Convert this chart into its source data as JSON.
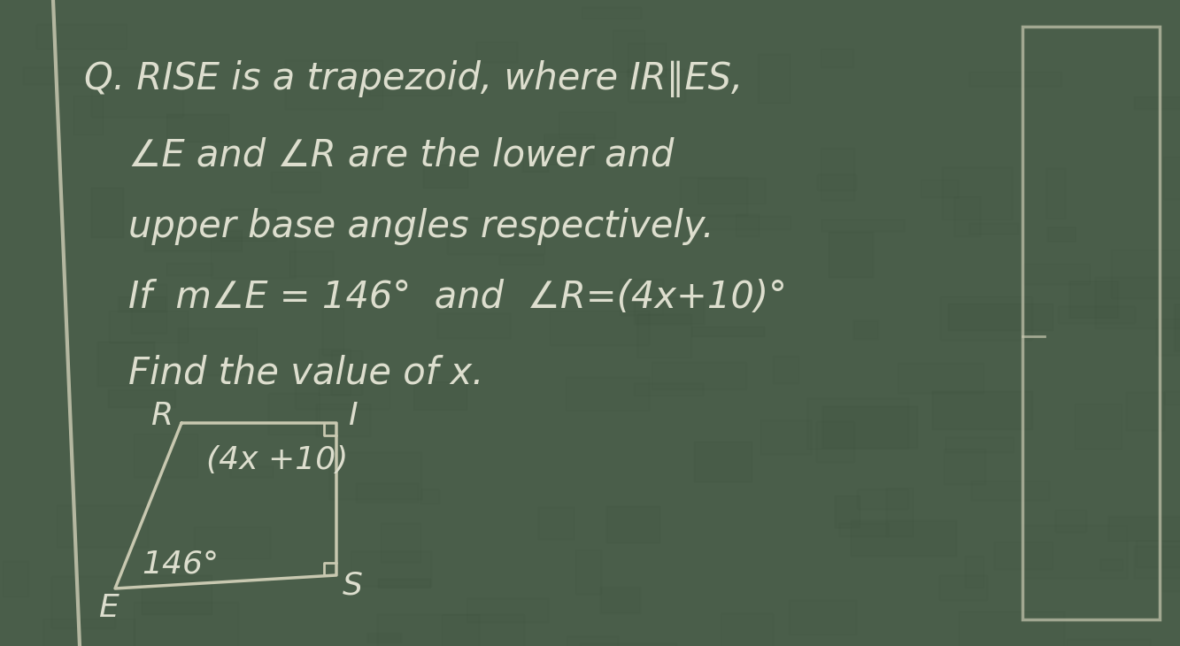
{
  "bg_color": "#4a5e4a",
  "text_color": "#dddece",
  "line1": "Q. RISE is a trapezoid, where IR∥ES,",
  "line2": "∠E and ∠R are the lower and",
  "line3": "upper base angles respectively.",
  "line4": "If  m∠E = 146°  and  ∠R=(4x+10)°",
  "line5": "Find the value of x.",
  "trap_label_R": "R",
  "trap_label_I": "I",
  "trap_label_E": "E",
  "trap_label_S": "S",
  "trap_angle_label": "(4x +10)",
  "trap_angle_bottom": "146°",
  "font_size_main": 30,
  "font_size_diagram": 26,
  "bg_color_dark": "#3a4e3a",
  "chalk_line_color": "#c8c8b0"
}
